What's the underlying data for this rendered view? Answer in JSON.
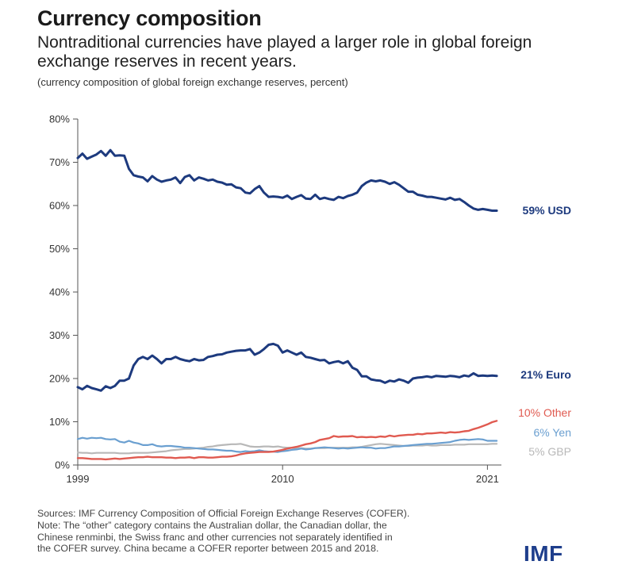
{
  "header": {
    "title": "Currency composition",
    "subtitle": "Nontraditional currencies have played a larger role in global foreign exchange reserves in recent years.",
    "units": "(currency composition of global foreign exchange reserves, percent)"
  },
  "chart_data": {
    "type": "line",
    "title": "Currency composition",
    "xlabel": "",
    "ylabel": "percent",
    "xlim": [
      1999,
      2021.75
    ],
    "ylim": [
      0,
      80
    ],
    "x_ticks": [
      1999,
      2010,
      2021
    ],
    "x_tick_labels": [
      "1999",
      "2010",
      "2021"
    ],
    "y_ticks": [
      0,
      10,
      20,
      30,
      40,
      50,
      60,
      70,
      80
    ],
    "y_tick_labels": [
      "0%",
      "10%",
      "20%",
      "30%",
      "40%",
      "50%",
      "60%",
      "70%",
      "80%"
    ],
    "x": [
      1999.0,
      1999.25,
      1999.5,
      1999.75,
      2000.0,
      2000.25,
      2000.5,
      2000.75,
      2001.0,
      2001.25,
      2001.5,
      2001.75,
      2002.0,
      2002.25,
      2002.5,
      2002.75,
      2003.0,
      2003.25,
      2003.5,
      2003.75,
      2004.0,
      2004.25,
      2004.5,
      2004.75,
      2005.0,
      2005.25,
      2005.5,
      2005.75,
      2006.0,
      2006.25,
      2006.5,
      2006.75,
      2007.0,
      2007.25,
      2007.5,
      2007.75,
      2008.0,
      2008.25,
      2008.5,
      2008.75,
      2009.0,
      2009.25,
      2009.5,
      2009.75,
      2010.0,
      2010.25,
      2010.5,
      2010.75,
      2011.0,
      2011.25,
      2011.5,
      2011.75,
      2012.0,
      2012.25,
      2012.5,
      2012.75,
      2013.0,
      2013.25,
      2013.5,
      2013.75,
      2014.0,
      2014.25,
      2014.5,
      2014.75,
      2015.0,
      2015.25,
      2015.5,
      2015.75,
      2016.0,
      2016.25,
      2016.5,
      2016.75,
      2017.0,
      2017.25,
      2017.5,
      2017.75,
      2018.0,
      2018.25,
      2018.5,
      2018.75,
      2019.0,
      2019.25,
      2019.5,
      2019.75,
      2020.0,
      2020.25,
      2020.5,
      2020.75,
      2021.0,
      2021.25,
      2021.5
    ],
    "series": [
      {
        "name": "USD",
        "label": "59% USD",
        "color": "#1d3a7e",
        "values": [
          71.0,
          72.0,
          70.8,
          71.3,
          71.8,
          72.6,
          71.5,
          72.8,
          71.5,
          71.6,
          71.5,
          68.5,
          67.0,
          66.7,
          66.5,
          65.6,
          66.8,
          66.0,
          65.5,
          65.8,
          66.0,
          66.5,
          65.2,
          66.6,
          67.0,
          65.8,
          66.5,
          66.2,
          65.8,
          66.0,
          65.5,
          65.3,
          64.8,
          64.9,
          64.2,
          64.0,
          63.0,
          62.8,
          63.8,
          64.5,
          63.0,
          62.0,
          62.1,
          62.0,
          61.8,
          62.3,
          61.5,
          62.0,
          62.4,
          61.6,
          61.5,
          62.5,
          61.5,
          61.8,
          61.5,
          61.3,
          62.0,
          61.7,
          62.2,
          62.5,
          63.0,
          64.5,
          65.3,
          65.8,
          65.6,
          65.8,
          65.5,
          65.0,
          65.4,
          64.8,
          64.0,
          63.2,
          63.2,
          62.5,
          62.3,
          62.0,
          62.0,
          61.8,
          61.6,
          61.4,
          61.8,
          61.3,
          61.5,
          60.8,
          60.0,
          59.3,
          59.0,
          59.2,
          59.0,
          58.8,
          58.8
        ]
      },
      {
        "name": "Euro",
        "label": "21% Euro",
        "color": "#1d3a7e",
        "values": [
          18.0,
          17.5,
          18.3,
          17.8,
          17.5,
          17.2,
          18.2,
          17.8,
          18.3,
          19.5,
          19.5,
          20.0,
          23.0,
          24.5,
          25.0,
          24.5,
          25.3,
          24.5,
          23.5,
          24.5,
          24.5,
          25.0,
          24.5,
          24.2,
          24.0,
          24.5,
          24.2,
          24.3,
          25.0,
          25.2,
          25.5,
          25.6,
          26.0,
          26.2,
          26.4,
          26.5,
          26.5,
          26.8,
          25.5,
          26.0,
          26.8,
          27.8,
          28.0,
          27.6,
          26.0,
          26.5,
          26.0,
          25.5,
          26.0,
          25.0,
          24.8,
          24.5,
          24.2,
          24.3,
          23.5,
          23.8,
          24.0,
          23.5,
          24.0,
          22.5,
          22.0,
          20.5,
          20.5,
          19.8,
          19.6,
          19.5,
          19.0,
          19.5,
          19.3,
          19.8,
          19.5,
          19.0,
          20.0,
          20.2,
          20.3,
          20.5,
          20.3,
          20.6,
          20.5,
          20.4,
          20.6,
          20.5,
          20.3,
          20.7,
          20.5,
          21.2,
          20.6,
          20.7,
          20.6,
          20.7,
          20.6
        ]
      },
      {
        "name": "Other",
        "label": "10% Other",
        "color": "#e05a50",
        "values": [
          1.6,
          1.6,
          1.5,
          1.4,
          1.4,
          1.4,
          1.3,
          1.4,
          1.5,
          1.4,
          1.5,
          1.6,
          1.7,
          1.8,
          1.8,
          1.9,
          1.8,
          1.8,
          1.8,
          1.7,
          1.7,
          1.6,
          1.7,
          1.7,
          1.8,
          1.6,
          1.8,
          1.8,
          1.7,
          1.7,
          1.8,
          1.9,
          1.9,
          2.0,
          2.2,
          2.5,
          2.7,
          2.8,
          2.9,
          3.0,
          3.0,
          3.0,
          3.1,
          3.3,
          3.5,
          3.8,
          4.0,
          4.2,
          4.5,
          4.8,
          5.0,
          5.3,
          5.8,
          6.0,
          6.2,
          6.7,
          6.5,
          6.6,
          6.6,
          6.7,
          6.4,
          6.5,
          6.4,
          6.5,
          6.4,
          6.6,
          6.5,
          6.8,
          6.6,
          6.8,
          6.9,
          7.0,
          7.0,
          7.2,
          7.1,
          7.3,
          7.3,
          7.4,
          7.5,
          7.4,
          7.6,
          7.5,
          7.6,
          7.8,
          7.9,
          8.3,
          8.6,
          9.0,
          9.4,
          9.9,
          10.2
        ]
      },
      {
        "name": "Yen",
        "label": "6% Yen",
        "color": "#6a9fd0",
        "values": [
          6.0,
          6.3,
          6.1,
          6.3,
          6.2,
          6.3,
          6.0,
          5.9,
          6.0,
          5.4,
          5.2,
          5.6,
          5.2,
          5.0,
          4.6,
          4.6,
          4.8,
          4.4,
          4.3,
          4.4,
          4.4,
          4.3,
          4.2,
          4.0,
          4.0,
          3.9,
          3.8,
          3.7,
          3.6,
          3.6,
          3.5,
          3.4,
          3.3,
          3.3,
          3.1,
          3.0,
          3.2,
          3.1,
          3.2,
          3.4,
          3.2,
          3.1,
          3.1,
          3.0,
          3.2,
          3.3,
          3.5,
          3.6,
          3.8,
          3.6,
          3.7,
          3.9,
          4.0,
          4.1,
          4.0,
          3.9,
          3.8,
          3.9,
          3.8,
          3.9,
          4.0,
          4.1,
          4.0,
          4.0,
          3.8,
          3.9,
          3.9,
          4.1,
          4.3,
          4.3,
          4.4,
          4.5,
          4.6,
          4.7,
          4.8,
          4.9,
          4.9,
          5.0,
          5.1,
          5.2,
          5.3,
          5.6,
          5.8,
          5.9,
          5.8,
          5.9,
          6.0,
          5.9,
          5.6,
          5.6,
          5.6
        ]
      },
      {
        "name": "GBP",
        "label": "5% GBP",
        "color": "#b8b8b8",
        "values": [
          2.9,
          2.8,
          2.8,
          2.7,
          2.8,
          2.8,
          2.8,
          2.8,
          2.8,
          2.7,
          2.7,
          2.7,
          2.8,
          2.8,
          2.8,
          2.8,
          2.9,
          3.0,
          3.1,
          3.2,
          3.4,
          3.5,
          3.6,
          3.7,
          3.7,
          3.8,
          3.9,
          4.0,
          4.2,
          4.3,
          4.5,
          4.6,
          4.7,
          4.8,
          4.8,
          4.9,
          4.6,
          4.3,
          4.2,
          4.2,
          4.3,
          4.3,
          4.2,
          4.3,
          4.1,
          4.0,
          4.0,
          3.9,
          3.9,
          3.8,
          3.8,
          3.9,
          3.9,
          3.9,
          4.0,
          4.0,
          4.0,
          4.0,
          4.0,
          4.1,
          4.1,
          4.2,
          4.4,
          4.6,
          4.8,
          4.9,
          4.8,
          4.7,
          4.6,
          4.5,
          4.4,
          4.4,
          4.5,
          4.5,
          4.5,
          4.6,
          4.5,
          4.5,
          4.6,
          4.6,
          4.6,
          4.7,
          4.7,
          4.7,
          4.8,
          4.8,
          4.8,
          4.8,
          4.8,
          4.9,
          4.9
        ]
      }
    ]
  },
  "notes": {
    "lines": [
      "Sources: IMF Currency Composition of Official Foreign Exchange Reserves (COFER).",
      "Note: The “other” category contains the Australian dollar, the Canadian dollar, the",
      "Chinese renminbi, the Swiss franc and other currencies not separately identified in",
      "the COFER survey. China became a COFER reporter between 2015 and 2018."
    ]
  },
  "logo": {
    "text": "IMF",
    "color": "#1e3e8c"
  }
}
